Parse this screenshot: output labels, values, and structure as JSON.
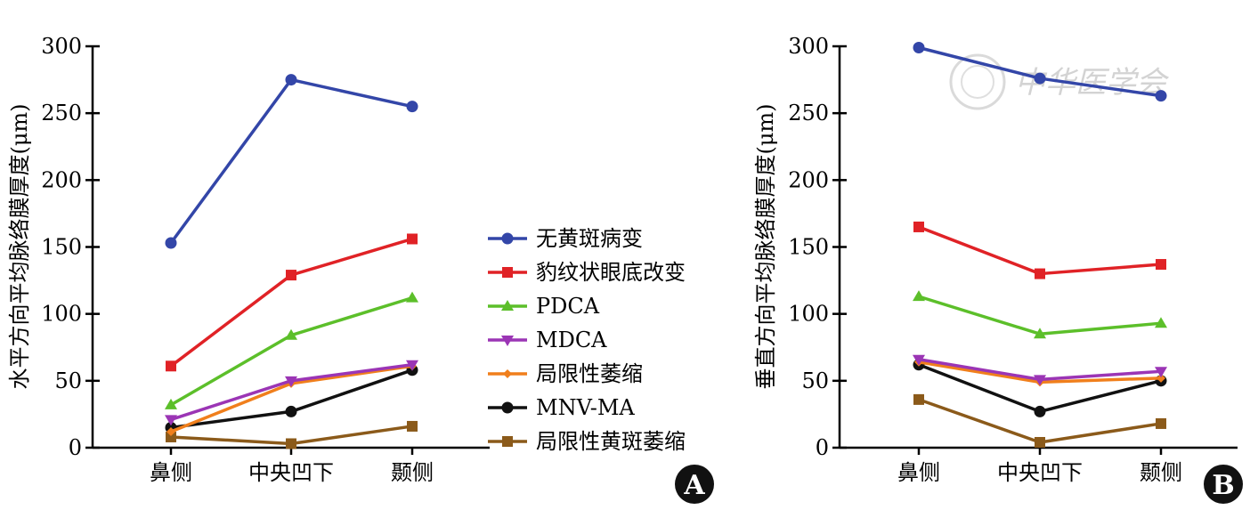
{
  "chart_data": [
    {
      "panel": "A",
      "type": "line",
      "title": "",
      "xlabel": "",
      "ylabel": "水平方向平均脉络膜厚度(μm)",
      "categories": [
        "鼻侧",
        "中央凹下",
        "颞侧"
      ],
      "yticks": [
        "0",
        "50",
        "100",
        "150",
        "200",
        "250",
        "300"
      ],
      "ylim": [
        0,
        300
      ],
      "series": [
        {
          "name": "无黄斑病变",
          "color": "#3346a8",
          "marker": "circle",
          "values": [
            153,
            275,
            255
          ]
        },
        {
          "name": "豹纹状眼底改变",
          "color": "#e02226",
          "marker": "square",
          "values": [
            61,
            129,
            156
          ]
        },
        {
          "name": "PDCA",
          "color": "#5cbf2a",
          "marker": "triangle-up",
          "values": [
            32,
            84,
            112
          ]
        },
        {
          "name": "MDCA",
          "color": "#9b35b5",
          "marker": "triangle-down",
          "values": [
            21,
            50,
            62
          ]
        },
        {
          "name": "局限性萎缩",
          "color": "#f07f1c",
          "marker": "diamond",
          "values": [
            12,
            48,
            61
          ]
        },
        {
          "name": "MNV-MA",
          "color": "#111111",
          "marker": "circle",
          "values": [
            15,
            27,
            58
          ]
        },
        {
          "name": "局限性黄斑萎缩",
          "color": "#8b5a1a",
          "marker": "square",
          "values": [
            8,
            3,
            16
          ]
        }
      ]
    },
    {
      "panel": "B",
      "type": "line",
      "title": "",
      "xlabel": "",
      "ylabel": "垂直方向平均脉络膜厚度(μm)",
      "categories": [
        "鼻侧",
        "中央凹下",
        "颞侧"
      ],
      "yticks": [
        "0",
        "50",
        "100",
        "150",
        "200",
        "250",
        "300"
      ],
      "ylim": [
        0,
        300
      ],
      "series": [
        {
          "name": "无黄斑病变",
          "color": "#3346a8",
          "marker": "circle",
          "values": [
            299,
            276,
            263
          ]
        },
        {
          "name": "豹纹状眼底改变",
          "color": "#e02226",
          "marker": "square",
          "values": [
            165,
            130,
            137
          ]
        },
        {
          "name": "PDCA",
          "color": "#5cbf2a",
          "marker": "triangle-up",
          "values": [
            113,
            85,
            93
          ]
        },
        {
          "name": "MDCA",
          "color": "#9b35b5",
          "marker": "triangle-down",
          "values": [
            66,
            51,
            57
          ]
        },
        {
          "name": "局限性萎缩",
          "color": "#f07f1c",
          "marker": "diamond",
          "values": [
            64,
            49,
            52
          ]
        },
        {
          "name": "MNV-MA",
          "color": "#111111",
          "marker": "circle",
          "values": [
            62,
            27,
            50
          ]
        },
        {
          "name": "局限性黄斑萎缩",
          "color": "#8b5a1a",
          "marker": "square",
          "values": [
            36,
            4,
            18
          ]
        }
      ]
    }
  ],
  "legend": {
    "items": [
      "无黄斑病变",
      "豹纹状眼底改变",
      "PDCA",
      "MDCA",
      "局限性萎缩",
      "MNV-MA",
      "局限性黄斑萎缩"
    ]
  },
  "panel_labels": {
    "a": "A",
    "b": "B"
  },
  "watermark": {
    "text": "中华医学会"
  }
}
